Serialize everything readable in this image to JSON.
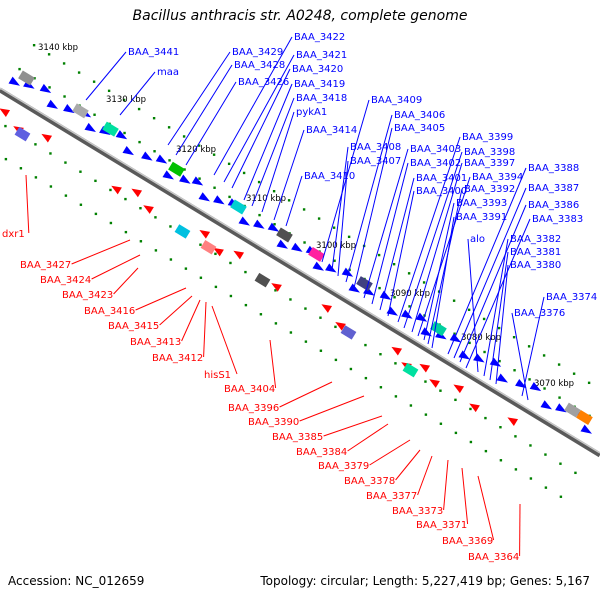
{
  "title": "Bacillus anthracis str. A0248, complete genome",
  "footer": {
    "accession": "Accession: NC_012659",
    "summary": "Topology: circular; Length: 5,227,419 bp; Genes: 5,167"
  },
  "colors": {
    "forward_strand": "#0000ff",
    "reverse_strand": "#ff0000",
    "backbone": "#808080",
    "tick": "#008000"
  },
  "kbp_ticks": [
    "3140 kbp",
    "3130 kbp",
    "3120 kbp",
    "3110 kbp",
    "3100 kbp",
    "3090 kbp",
    "3080 kbp",
    "3070 kbp"
  ],
  "forward_genes": [
    "BAA_3441",
    "maa",
    "BAA_3429",
    "BAA_3428",
    "BAA_3426",
    "BAA_3422",
    "BAA_3421",
    "BAA_3420",
    "BAA_3419",
    "BAA_3418",
    "pykA1",
    "BAA_3414",
    "BAA_3410",
    "BAA_3409",
    "BAA_3408",
    "BAA_3407",
    "BAA_3406",
    "BAA_3405",
    "BAA_3403",
    "BAA_3402",
    "BAA_3401",
    "BAA_3400",
    "BAA_3399",
    "BAA_3398",
    "BAA_3397",
    "BAA_3394",
    "BAA_3393",
    "BAA_3392",
    "BAA_3391",
    "BAA_3388",
    "BAA_3387",
    "BAA_3386",
    "BAA_3383",
    "alo",
    "BAA_3382",
    "BAA_3381",
    "BAA_3380",
    "BAA_3374",
    "BAA_3376"
  ],
  "reverse_genes": [
    "dxr1",
    "BAA_3427",
    "BAA_3424",
    "BAA_3423",
    "BAA_3416",
    "BAA_3415",
    "BAA_3413",
    "BAA_3412",
    "hisS1",
    "BAA_3404",
    "BAA_3396",
    "BAA_3390",
    "BAA_3385",
    "BAA_3384",
    "BAA_3379",
    "BAA_3378",
    "BAA_3377",
    "BAA_3373",
    "BAA_3371",
    "BAA_3369",
    "BAA_3364"
  ]
}
